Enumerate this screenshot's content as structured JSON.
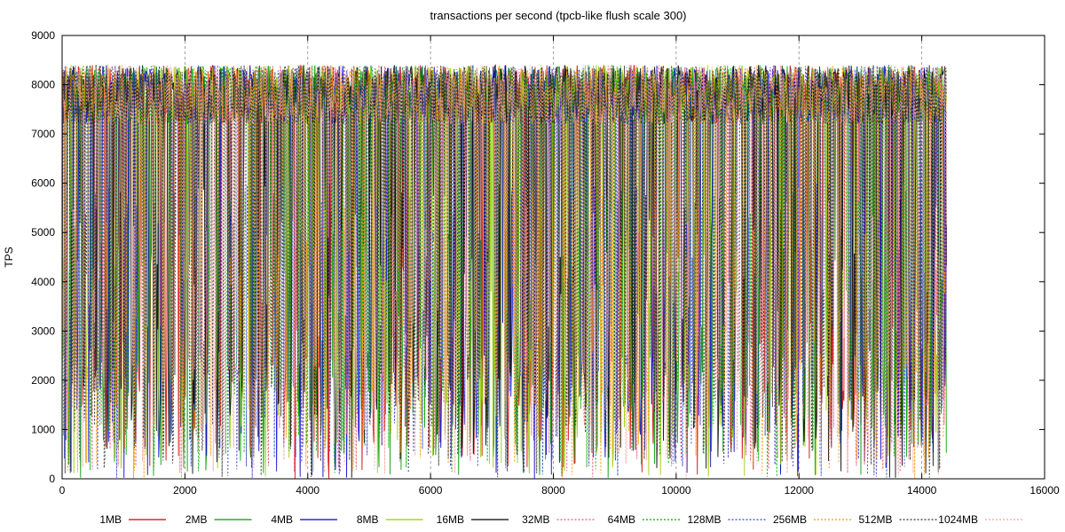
{
  "chart_data": {
    "type": "line",
    "title": "transactions per second (tpcb-like flush scale 300)",
    "xlabel": "",
    "ylabel": "TPS",
    "xlim": [
      0,
      16000
    ],
    "ylim": [
      0,
      9000
    ],
    "xticks": [
      0,
      2000,
      4000,
      6000,
      8000,
      10000,
      12000,
      14000,
      16000
    ],
    "yticks": [
      0,
      1000,
      2000,
      3000,
      4000,
      5000,
      6000,
      7000,
      8000,
      9000
    ],
    "grid": "vertical dashed at x ticks",
    "legend_position": "bottom",
    "x_range_of_data": [
      0,
      14400
    ],
    "typical_range": [
      7200,
      8400
    ],
    "dip_minimum": 0,
    "series": [
      {
        "name": "1MB",
        "color": "#cc0000",
        "style": "solid"
      },
      {
        "name": "2MB",
        "color": "#009900",
        "style": "solid"
      },
      {
        "name": "4MB",
        "color": "#0000cc",
        "style": "solid"
      },
      {
        "name": "8MB",
        "color": "#99cc00",
        "style": "solid"
      },
      {
        "name": "16MB",
        "color": "#000000",
        "style": "solid"
      },
      {
        "name": "32MB",
        "color": "#e8567a",
        "style": "dotted"
      },
      {
        "name": "64MB",
        "color": "#00aa00",
        "style": "dotted"
      },
      {
        "name": "128MB",
        "color": "#3344cc",
        "style": "dotted"
      },
      {
        "name": "256MB",
        "color": "#ff9900",
        "style": "dotted"
      },
      {
        "name": "512MB",
        "color": "#333333",
        "style": "dotted"
      },
      {
        "name": "1024MB",
        "color": "#f4a0a0",
        "style": "dotted"
      }
    ]
  }
}
